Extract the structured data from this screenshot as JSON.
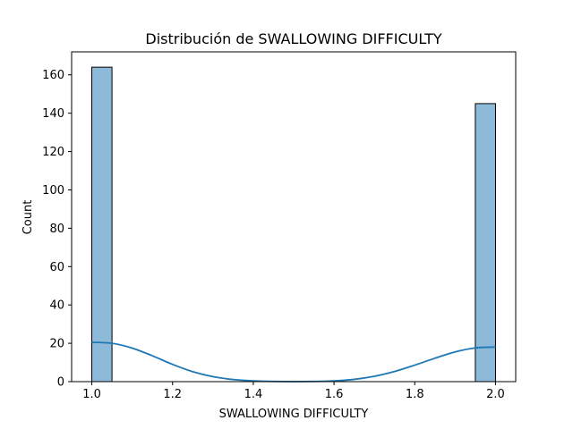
{
  "chart_data": {
    "type": "bar",
    "title": "Distribución de SWALLOWING DIFFICULTY",
    "xlabel": "SWALLOWING DIFFICULTY",
    "ylabel": "Count",
    "xlim": [
      0.95,
      2.05
    ],
    "ylim": [
      0,
      172
    ],
    "x_ticks": [
      1.0,
      1.2,
      1.4,
      1.6,
      1.8,
      2.0
    ],
    "x_tick_labels": [
      "1.0",
      "1.2",
      "1.4",
      "1.6",
      "1.8",
      "2.0"
    ],
    "y_ticks": [
      0,
      20,
      40,
      60,
      80,
      100,
      120,
      140,
      160
    ],
    "y_tick_labels": [
      "0",
      "20",
      "40",
      "60",
      "80",
      "100",
      "120",
      "140",
      "160"
    ],
    "bins": [
      {
        "x0": 1.0,
        "x1": 1.05,
        "count": 164
      },
      {
        "x0": 1.95,
        "x1": 2.0,
        "count": 145
      }
    ],
    "kde": {
      "x": [
        1.0,
        1.05,
        1.1,
        1.15,
        1.2,
        1.25,
        1.3,
        1.35,
        1.4,
        1.45,
        1.5,
        1.55,
        1.6,
        1.65,
        1.7,
        1.75,
        1.8,
        1.85,
        1.9,
        1.95,
        2.0
      ],
      "y": [
        20.5,
        20.0,
        17.5,
        13.5,
        9.0,
        5.2,
        2.6,
        1.1,
        0.4,
        0.1,
        0.0,
        0.1,
        0.4,
        1.2,
        2.8,
        5.3,
        8.6,
        12.2,
        15.5,
        17.6,
        18.0
      ]
    },
    "bar_fill": "#8ebad9",
    "bar_edge": "#000000",
    "kde_color": "#1f77b4",
    "grid": false
  }
}
